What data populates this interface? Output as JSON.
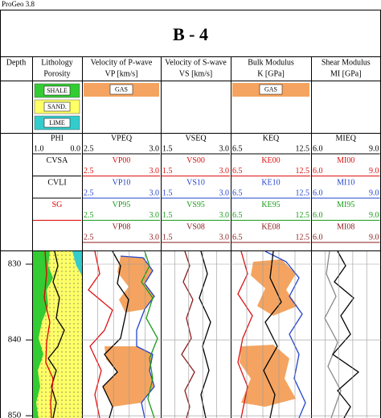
{
  "window_title": "ProGeo 3.8",
  "well_name": "B - 4",
  "columns": [
    {
      "title": "Depth"
    },
    {
      "title": "Lithology",
      "subtitle": "Porosity",
      "legend": [
        {
          "label": "SHALE",
          "color": "#33cc33"
        },
        {
          "label": "SAND.",
          "color": "#ffff66"
        },
        {
          "label": "LIME",
          "color": "#33cccc"
        }
      ],
      "curves": [
        {
          "name": "PHI",
          "min": "1.0",
          "max": "0.0",
          "color": "#000000"
        },
        {
          "name": "CVSA",
          "color": "#000000"
        },
        {
          "name": "CVLI",
          "color": "#000000"
        },
        {
          "name": "SG",
          "color": "#e00000"
        }
      ]
    },
    {
      "title": "Velocity of P-wave",
      "subtitle": "VP [km/s]",
      "legend": [
        {
          "label": "GAS",
          "color": "#f4a460"
        }
      ],
      "curves": [
        {
          "name": "VPEQ",
          "min": "2.5",
          "max": "3.0",
          "color": "#000000"
        },
        {
          "name": "VP00",
          "min": "2.5",
          "max": "3.0",
          "color": "#dd1111"
        },
        {
          "name": "VP10",
          "min": "2.5",
          "max": "3.0",
          "color": "#2244cc"
        },
        {
          "name": "VP95",
          "min": "2.5",
          "max": "3.0",
          "color": "#1a9a1a"
        },
        {
          "name": "VP08",
          "min": "2.5",
          "max": "3.0",
          "color": "#8b1a1a"
        }
      ]
    },
    {
      "title": "Velocity of S-wave",
      "subtitle": "VS [km/s]",
      "curves": [
        {
          "name": "VSEQ",
          "min": "1.5",
          "max": "3.0",
          "color": "#000000"
        },
        {
          "name": "VS00",
          "min": "1.5",
          "max": "3.0",
          "color": "#dd1111"
        },
        {
          "name": "VS10",
          "min": "1.5",
          "max": "3.0",
          "color": "#2244cc"
        },
        {
          "name": "VS95",
          "min": "1.5",
          "max": "3.0",
          "color": "#1a9a1a"
        },
        {
          "name": "VS08",
          "min": "1.5",
          "max": "3.0",
          "color": "#8b1a1a"
        }
      ]
    },
    {
      "title": "Bulk Modulus",
      "subtitle": "K [GPa]",
      "legend": [
        {
          "label": "GAS",
          "color": "#f4a460"
        }
      ],
      "curves": [
        {
          "name": "KEQ",
          "min": "6.5",
          "max": "12.5",
          "color": "#000000"
        },
        {
          "name": "KE00",
          "min": "6.5",
          "max": "12.5",
          "color": "#dd1111"
        },
        {
          "name": "KE10",
          "min": "6.5",
          "max": "12.5",
          "color": "#2244cc"
        },
        {
          "name": "KE95",
          "min": "6.5",
          "max": "12.5",
          "color": "#1a9a1a"
        },
        {
          "name": "KE08",
          "min": "6.5",
          "max": "12.5",
          "color": "#8b1a1a"
        }
      ]
    },
    {
      "title": "Shear Modulus",
      "subtitle": "MI [GPa]",
      "curves": [
        {
          "name": "MIEQ",
          "min": "6.0",
          "max": "9.0",
          "color": "#000000"
        },
        {
          "name": "MI00",
          "min": "6.0",
          "max": "9.0",
          "color": "#dd1111"
        },
        {
          "name": "MI10",
          "min": "6.0",
          "max": "9.0",
          "color": "#2244cc"
        },
        {
          "name": "MI95",
          "min": "6.0",
          "max": "9.0",
          "color": "#1a9a1a"
        },
        {
          "name": "MI08",
          "min": "6.0",
          "max": "9.0",
          "color": "#8b1a1a"
        }
      ]
    }
  ],
  "depth_range": [
    828.3,
    850.3
  ],
  "depth_ticks": [
    830,
    840,
    850
  ]
}
